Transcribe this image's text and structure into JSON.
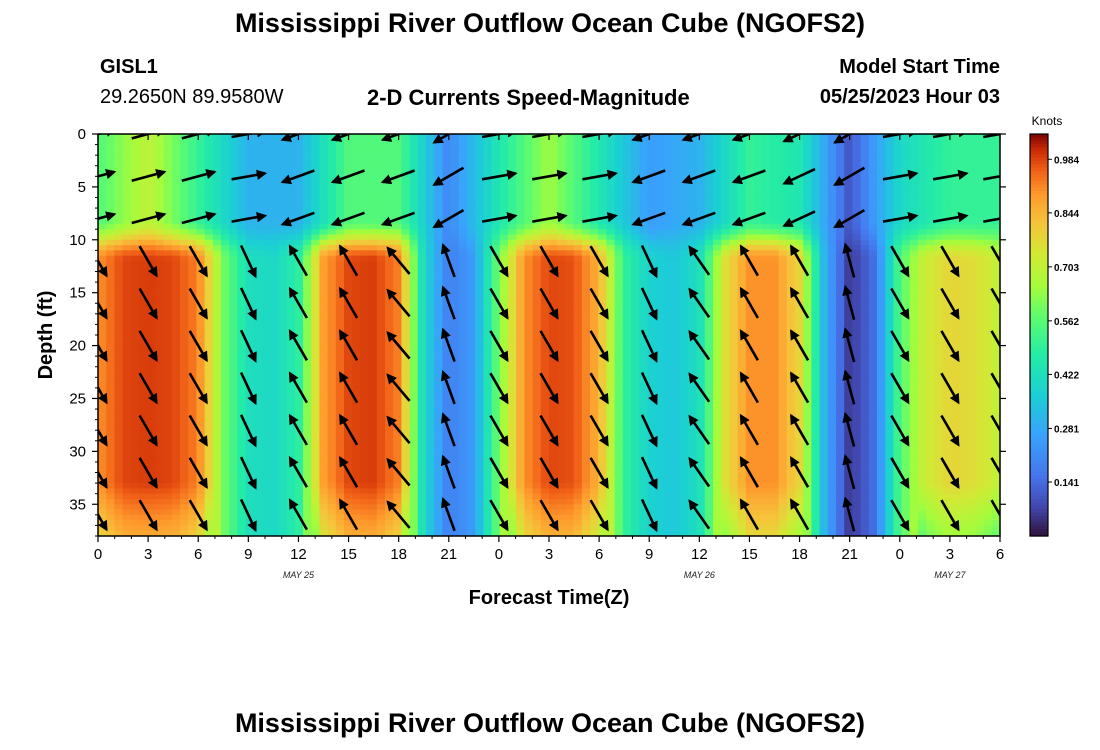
{
  "page": {
    "title": "Mississippi River Outflow Ocean Cube (NGOFS2)",
    "station_id": "GISL1",
    "station_coords": "29.2650N  89.9580W",
    "subtitle": "2-D Currents Speed-Magnitude",
    "model_start_label": "Model Start Time",
    "model_start_value": "05/25/2023 Hour 03",
    "second_title": "Mississippi River Outflow Ocean Cube (NGOFS2)"
  },
  "chart_data": {
    "type": "heatmap",
    "title": "2-D Currents Speed-Magnitude",
    "xlabel": "Forecast Time(Z)",
    "ylabel": "Depth (ft)",
    "x_units": "hours since 05/25 00Z",
    "xlim": [
      0,
      54
    ],
    "ylim": [
      38,
      0
    ],
    "x_ticks": [
      0,
      3,
      6,
      9,
      12,
      15,
      18,
      21,
      24,
      27,
      30,
      33,
      36,
      39,
      42,
      45,
      48,
      51,
      54
    ],
    "x_tick_labels": [
      "0",
      "3",
      "6",
      "9",
      "12",
      "15",
      "18",
      "21",
      "0",
      "3",
      "6",
      "9",
      "12",
      "15",
      "18",
      "21",
      "0",
      "3",
      "6"
    ],
    "y_ticks": [
      0,
      5,
      10,
      15,
      20,
      25,
      30,
      35
    ],
    "y_tick_labels": [
      "0",
      "5",
      "10",
      "15",
      "20",
      "25",
      "30",
      "35"
    ],
    "date_labels": [
      {
        "x": 12,
        "label": "MAY 25"
      },
      {
        "x": 36,
        "label": "MAY 26"
      },
      {
        "x": 51,
        "label": "MAY 27"
      }
    ],
    "colorbar": {
      "units": "Knots",
      "ticks": [
        0.984,
        0.844,
        0.703,
        0.562,
        0.422,
        0.281,
        0.141
      ],
      "tick_labels": [
        "0.984",
        "0.844",
        "0.703",
        "0.562",
        "0.422",
        "0.281",
        "0.141"
      ],
      "range": [
        0.0,
        1.05
      ],
      "colormap": "turbo"
    },
    "deep_layer_speed_by_hour": {
      "hours": [
        0,
        1.5,
        3,
        4.5,
        6,
        7.5,
        9,
        10.5,
        12,
        13.5,
        15,
        16.5,
        18,
        19.5,
        21,
        22.5,
        24,
        25.5,
        27,
        28.5,
        30,
        31.5,
        33,
        34.5,
        36,
        37.5,
        39,
        40.5,
        42,
        43.5,
        45,
        46.5,
        48,
        49.5,
        51,
        52.5,
        54
      ],
      "values": [
        0.9,
        0.98,
        0.99,
        0.98,
        0.92,
        0.6,
        0.42,
        0.4,
        0.48,
        0.88,
        0.98,
        0.99,
        0.92,
        0.4,
        0.18,
        0.25,
        0.6,
        0.9,
        0.98,
        0.97,
        0.85,
        0.5,
        0.38,
        0.35,
        0.42,
        0.75,
        0.9,
        0.9,
        0.78,
        0.3,
        0.05,
        0.15,
        0.55,
        0.72,
        0.78,
        0.76,
        0.7
      ]
    },
    "surface_layer_speed_by_hour": {
      "hours": [
        0,
        3,
        6,
        9,
        12,
        15,
        18,
        21,
        24,
        27,
        30,
        33,
        36,
        39,
        42,
        45,
        48,
        51,
        54
      ],
      "values": [
        0.55,
        0.7,
        0.5,
        0.3,
        0.3,
        0.55,
        0.55,
        0.2,
        0.45,
        0.65,
        0.45,
        0.25,
        0.3,
        0.5,
        0.45,
        0.1,
        0.4,
        0.5,
        0.5
      ]
    },
    "current_direction_deg_by_hour": {
      "hours": [
        0,
        3,
        6,
        9,
        12,
        15,
        18,
        21,
        24,
        27,
        30,
        33,
        36,
        39,
        42,
        45,
        48,
        51,
        54
      ],
      "deep_deg": [
        150,
        150,
        150,
        155,
        330,
        330,
        320,
        340,
        150,
        150,
        150,
        155,
        325,
        330,
        330,
        345,
        150,
        150,
        150
      ],
      "surface_deg": [
        75,
        75,
        75,
        80,
        250,
        250,
        250,
        240,
        80,
        80,
        80,
        250,
        250,
        250,
        245,
        240,
        80,
        80,
        80
      ]
    }
  }
}
